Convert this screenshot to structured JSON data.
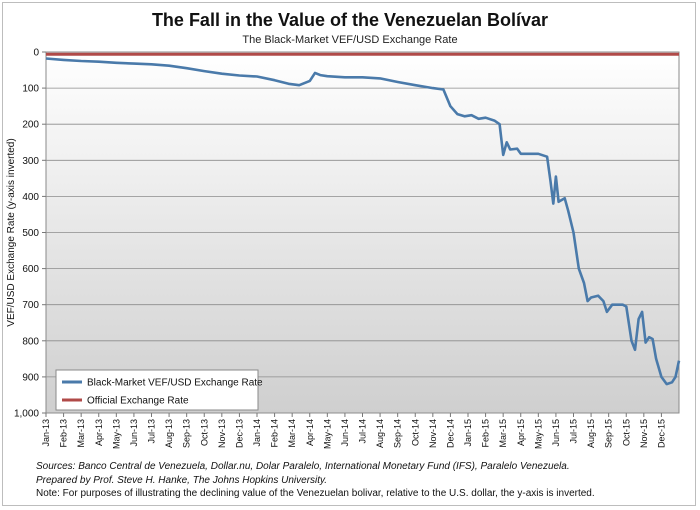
{
  "chart_data": {
    "type": "line",
    "title": "The Fall in the Value of the Venezuelan Bolívar",
    "subtitle": "The Black-Market VEF/USD Exchange Rate",
    "ylabel": "VEF/USD Exchange Rate (y-axis inverted)",
    "xlabel": "",
    "y_inverted": true,
    "ylim": [
      0,
      1000
    ],
    "yticks": [
      0,
      100,
      200,
      300,
      400,
      500,
      600,
      700,
      800,
      900,
      1000
    ],
    "ytick_labels": [
      "0",
      "100",
      "200",
      "300",
      "400",
      "500",
      "600",
      "700",
      "800",
      "900",
      "1,000"
    ],
    "xtick_labels": [
      "Jan-13",
      "Feb-13",
      "Mar-13",
      "Apr-13",
      "May-13",
      "Jun-13",
      "Jul-13",
      "Aug-13",
      "Sep-13",
      "Oct-13",
      "Nov-13",
      "Dec-13",
      "Jan-14",
      "Feb-14",
      "Mar-14",
      "Apr-14",
      "May-14",
      "Jun-14",
      "Jul-14",
      "Aug-14",
      "Sep-14",
      "Oct-14",
      "Nov-14",
      "Dec-14",
      "Jan-15",
      "Feb-15",
      "Mar-15",
      "Apr-15",
      "May-15",
      "Jun-15",
      "Jul-15",
      "Aug-15",
      "Sep-15",
      "Oct-15",
      "Nov-15",
      "Dec-15"
    ],
    "grid": true,
    "legend_position": "bottom-left",
    "series": [
      {
        "name": "Black-Market VEF/USD Exchange Rate",
        "color": "#4a7aaa",
        "points": [
          [
            0,
            18
          ],
          [
            1,
            22
          ],
          [
            2,
            25
          ],
          [
            3,
            27
          ],
          [
            4,
            30
          ],
          [
            5,
            32
          ],
          [
            6,
            34
          ],
          [
            7,
            38
          ],
          [
            8,
            45
          ],
          [
            9,
            53
          ],
          [
            10,
            60
          ],
          [
            11,
            65
          ],
          [
            12,
            68
          ],
          [
            13,
            78
          ],
          [
            13.8,
            88
          ],
          [
            14.4,
            92
          ],
          [
            15,
            80
          ],
          [
            15.3,
            58
          ],
          [
            15.6,
            64
          ],
          [
            16,
            67
          ],
          [
            17,
            70
          ],
          [
            18,
            70
          ],
          [
            19,
            73
          ],
          [
            20,
            83
          ],
          [
            21,
            92
          ],
          [
            22,
            100
          ],
          [
            22.6,
            104
          ],
          [
            23,
            150
          ],
          [
            23.4,
            172
          ],
          [
            23.8,
            178
          ],
          [
            24.2,
            175
          ],
          [
            24.6,
            185
          ],
          [
            25,
            182
          ],
          [
            25.5,
            190
          ],
          [
            25.8,
            200
          ],
          [
            26,
            285
          ],
          [
            26.2,
            250
          ],
          [
            26.4,
            270
          ],
          [
            26.8,
            268
          ],
          [
            27,
            282
          ],
          [
            27.5,
            282
          ],
          [
            28,
            282
          ],
          [
            28.5,
            290
          ],
          [
            28.7,
            360
          ],
          [
            28.85,
            420
          ],
          [
            29,
            345
          ],
          [
            29.15,
            415
          ],
          [
            29.5,
            405
          ],
          [
            29.7,
            440
          ],
          [
            30,
            500
          ],
          [
            30.3,
            600
          ],
          [
            30.6,
            640
          ],
          [
            30.8,
            690
          ],
          [
            31,
            680
          ],
          [
            31.4,
            675
          ],
          [
            31.7,
            690
          ],
          [
            31.9,
            720
          ],
          [
            32.2,
            700
          ],
          [
            32.8,
            700
          ],
          [
            33,
            705
          ],
          [
            33.3,
            800
          ],
          [
            33.5,
            825
          ],
          [
            33.7,
            740
          ],
          [
            33.9,
            720
          ],
          [
            34.1,
            805
          ],
          [
            34.3,
            790
          ],
          [
            34.5,
            795
          ],
          [
            34.7,
            850
          ],
          [
            35,
            900
          ],
          [
            35.3,
            920
          ],
          [
            35.6,
            915
          ],
          [
            35.8,
            900
          ],
          [
            36,
            855
          ]
        ]
      },
      {
        "name": "Official Exchange Rate",
        "color": "#b04a48",
        "points": [
          [
            0,
            6.3
          ],
          [
            36,
            6.3
          ]
        ]
      }
    ]
  },
  "notes": {
    "sources": "Sources: Banco Central de Venezuela, Dollar.nu, Dolar Paralelo, International Monetary Fund (IFS), Paralelo Venezuela.",
    "prepared": "Prepared by Prof. Steve H. Hanke, The Johns Hopkins University.",
    "note": "Note: For purposes of illustrating the declining value of the Venezuelan bolivar, relative to the U.S. dollar, the y-axis is inverted."
  }
}
